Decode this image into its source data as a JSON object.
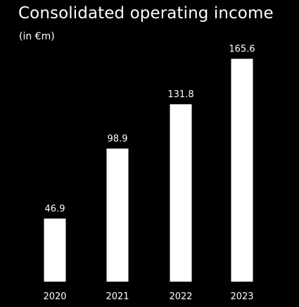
{
  "chart_data": {
    "type": "bar",
    "title": "Consolidated operating income",
    "subtitle": "(in €m)",
    "categories": [
      "2020",
      "2021",
      "2022",
      "2023"
    ],
    "values": [
      46.9,
      98.9,
      131.8,
      165.6
    ],
    "value_labels": [
      "46.9",
      "98.9",
      "131.8",
      "165.6"
    ],
    "bar_color": "#ffffff",
    "background_color": "#000000",
    "text_color": "#ffffff",
    "grid": false,
    "legend": "none"
  }
}
